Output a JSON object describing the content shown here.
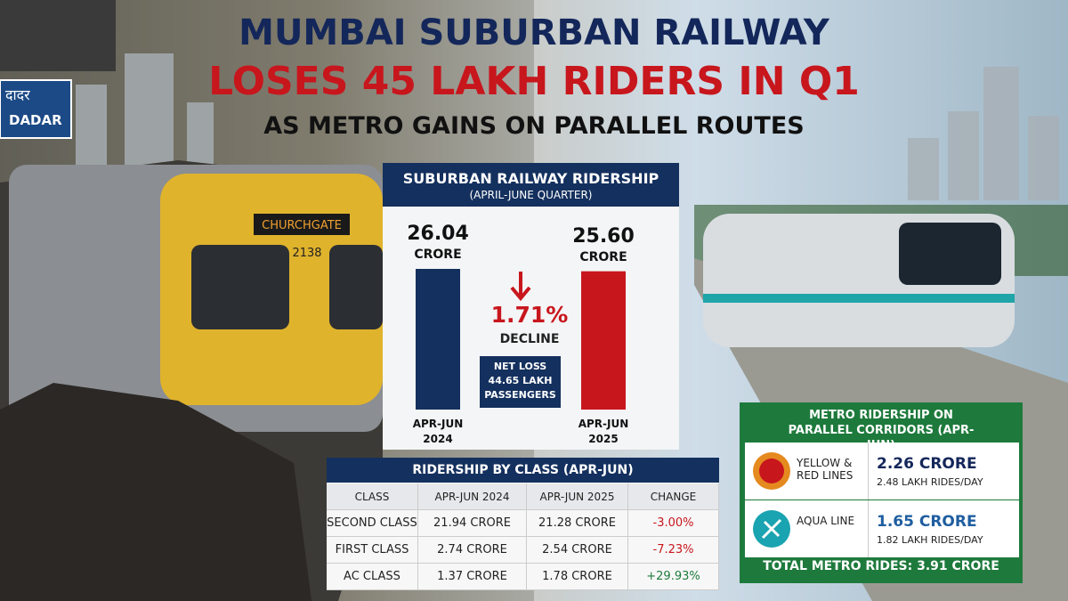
{
  "header": {
    "title_line1": "MUMBAI SUBURBAN RAILWAY",
    "title_line2": "LOSES 45 LAKH RIDERS IN Q1",
    "subtitle": "AS METRO GAINS ON PARALLEL ROUTES"
  },
  "photo_signs": {
    "station_hindi": "दादर",
    "station": "DADAR",
    "train_destination": "CHURCHGATE",
    "train_number": "2138"
  },
  "chart_data": {
    "type": "bar",
    "title": "SUBURBAN RAILWAY RIDERSHIP",
    "subtitle": "(APRIL-JUNE QUARTER)",
    "categories": [
      "APR-JUN 2024",
      "APR-JUN 2025"
    ],
    "values": [
      26.04,
      25.6
    ],
    "value_labels": [
      "26.04",
      "25.60"
    ],
    "unit": "CRORE",
    "colors": [
      "#14305e",
      "#c8161d"
    ],
    "annotations": {
      "change": "1.71%",
      "change_label": "DECLINE",
      "net_loss_title": "NET LOSS",
      "net_loss_value": "44.65 LAKH",
      "net_loss_unit": "PASSENGERS"
    }
  },
  "table": {
    "title": "RIDERSHIP BY CLASS (APR-JUN)",
    "columns": [
      "CLASS",
      "APR-JUN 2024",
      "APR-JUN 2025",
      "CHANGE"
    ],
    "rows": [
      [
        "SECOND CLASS",
        "21.94 CRORE",
        "21.28 CRORE",
        "-3.00%"
      ],
      [
        "FIRST CLASS",
        "2.74 CRORE",
        "2.54 CRORE",
        "-7.23%"
      ],
      [
        "AC CLASS",
        "1.37 CRORE",
        "1.78 CRORE",
        "+29.93%"
      ]
    ]
  },
  "metro": {
    "title": "METRO RIDERSHIP ON PARALLEL CORRIDORS (APR-JUN)",
    "lines": [
      {
        "name": "YELLOW & RED LINES",
        "ridership": "2.26 CRORE",
        "daily": "2.48 LAKH RIDES/DAY"
      },
      {
        "name": "AQUA LINE",
        "ridership": "1.65 CRORE",
        "daily": "1.82 LAKH RIDES/DAY"
      }
    ],
    "total": "TOTAL METRO RIDES: 3.91 CRORE"
  }
}
